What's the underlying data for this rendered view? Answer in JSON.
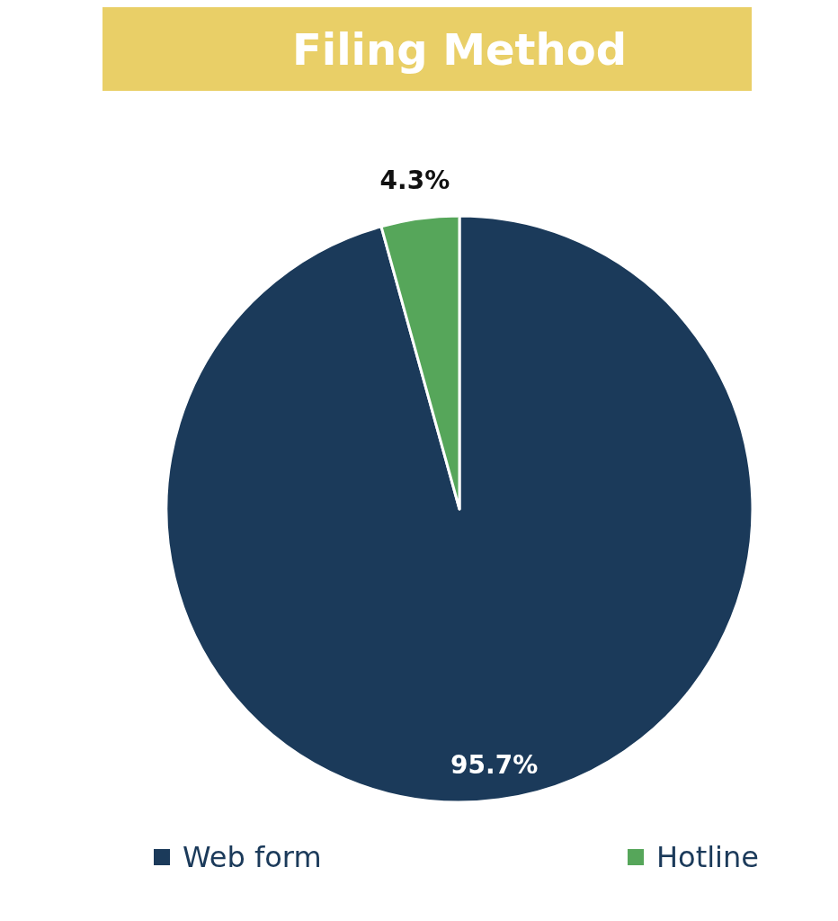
{
  "chart_data": {
    "type": "pie",
    "title": "Filing Method",
    "categories": [
      "Web form",
      "Hotline"
    ],
    "values": [
      95.7,
      4.3
    ],
    "colors": [
      "#1b3a5a",
      "#56a65a"
    ],
    "value_labels": [
      "95.7%",
      "4.3%"
    ],
    "legend": "bottom"
  }
}
